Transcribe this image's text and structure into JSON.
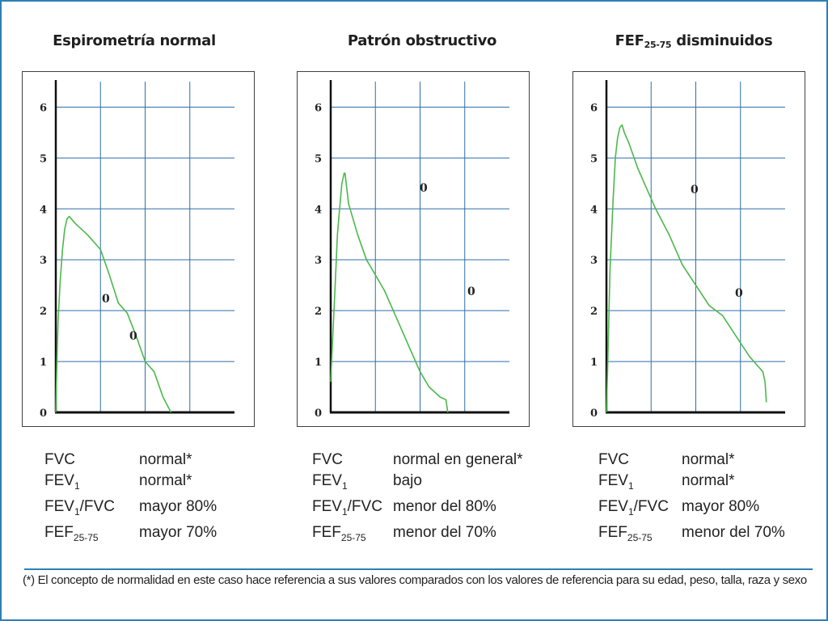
{
  "colors": {
    "frame": "#2f7fb5",
    "grid": "#2e6fa8",
    "curve": "#4cb84c",
    "axis": "#111111"
  },
  "panels": [
    {
      "title_main": "Espirometría normal",
      "title_sub": "",
      "title_after": "",
      "stats": [
        {
          "name_main": "FVC",
          "name_sub": "",
          "name_after": "",
          "value": "normal*"
        },
        {
          "name_main": "FEV",
          "name_sub": "1",
          "name_after": "",
          "value": "normal*"
        },
        {
          "name_main": "FEV",
          "name_sub": "1",
          "name_after": "/FVC",
          "value": "mayor 80%"
        },
        {
          "name_main": "FEF",
          "name_sub": "25-75",
          "name_after": "",
          "value": "mayor 70%"
        }
      ]
    },
    {
      "title_main": "Patrón obstructivo",
      "title_sub": "",
      "title_after": "",
      "stats": [
        {
          "name_main": "FVC",
          "name_sub": "",
          "name_after": "",
          "value": "normal en general*"
        },
        {
          "name_main": "FEV",
          "name_sub": "1",
          "name_after": "",
          "value": "bajo"
        },
        {
          "name_main": "FEV",
          "name_sub": "1",
          "name_after": "/FVC",
          "value": "menor del 80%"
        },
        {
          "name_main": "FEF",
          "name_sub": "25-75",
          "name_after": "",
          "value": "menor del 70%"
        }
      ]
    },
    {
      "title_main": "FEF",
      "title_sub": "25-75",
      "title_after": " disminuidos",
      "stats": [
        {
          "name_main": "FVC",
          "name_sub": "",
          "name_after": "",
          "value": "normal*"
        },
        {
          "name_main": "FEV",
          "name_sub": "1",
          "name_after": "",
          "value": "normal*"
        },
        {
          "name_main": "FEV",
          "name_sub": "1",
          "name_after": "/FVC",
          "value": "mayor 80%"
        },
        {
          "name_main": "FEF",
          "name_sub": "25-75",
          "name_after": "",
          "value": "menor del 70%"
        }
      ]
    }
  ],
  "footnote": "(*) El concepto de normalidad en este caso hace referencia a sus valores comparados con los valores de referencia para su edad, peso, talla, raza y sexo",
  "chart_data": [
    {
      "type": "line",
      "title": "Espirometría normal",
      "ylim": [
        0,
        6.5
      ],
      "xlim": [
        0,
        4
      ],
      "yticks": [
        "0",
        "1",
        "2",
        "3",
        "4",
        "5",
        "6"
      ],
      "grid": true,
      "series": [
        {
          "x": [
            0.0,
            0.02,
            0.05,
            0.1,
            0.15,
            0.2,
            0.25,
            0.3,
            0.45,
            0.7,
            1.0,
            1.2,
            1.4,
            1.6,
            1.8,
            2.0,
            2.2,
            2.4,
            2.58
          ],
          "y": [
            0.0,
            0.8,
            1.8,
            2.6,
            3.2,
            3.6,
            3.8,
            3.85,
            3.7,
            3.5,
            3.2,
            2.7,
            2.15,
            1.95,
            1.5,
            1.0,
            0.8,
            0.3,
            0.0
          ]
        }
      ],
      "annotations": [
        "0",
        "0"
      ]
    },
    {
      "type": "line",
      "title": "Patrón obstructivo",
      "ylim": [
        0,
        6.5
      ],
      "xlim": [
        0,
        4
      ],
      "yticks": [
        "0",
        "1",
        "2",
        "3",
        "4",
        "5",
        "6"
      ],
      "grid": true,
      "series": [
        {
          "x": [
            0.0,
            0.03,
            0.1,
            0.15,
            0.2,
            0.25,
            0.3,
            0.32,
            0.4,
            0.6,
            0.8,
            1.0,
            1.2,
            1.5,
            1.8,
            2.0,
            2.2,
            2.45,
            2.58,
            2.62
          ],
          "y": [
            0.6,
            1.2,
            2.5,
            3.5,
            4.0,
            4.5,
            4.7,
            4.7,
            4.1,
            3.5,
            3.0,
            2.7,
            2.4,
            1.8,
            1.2,
            0.8,
            0.5,
            0.3,
            0.25,
            0.0
          ]
        }
      ],
      "annotations": [
        "0",
        "0"
      ]
    },
    {
      "type": "line",
      "title": "FEF25-75 disminuidos",
      "ylim": [
        0,
        6.5
      ],
      "xlim": [
        0,
        4
      ],
      "yticks": [
        "0",
        "1",
        "2",
        "3",
        "4",
        "5",
        "6"
      ],
      "grid": true,
      "series": [
        {
          "x": [
            0.0,
            0.03,
            0.08,
            0.15,
            0.2,
            0.25,
            0.3,
            0.35,
            0.4,
            0.5,
            0.7,
            0.9,
            1.1,
            1.4,
            1.7,
            2.0,
            2.3,
            2.6,
            2.9,
            3.2,
            3.4,
            3.5,
            3.55,
            3.58
          ],
          "y": [
            0.0,
            1.0,
            2.8,
            4.2,
            5.0,
            5.4,
            5.6,
            5.65,
            5.5,
            5.3,
            4.8,
            4.4,
            4.0,
            3.5,
            2.9,
            2.5,
            2.1,
            1.9,
            1.5,
            1.1,
            0.9,
            0.8,
            0.6,
            0.2
          ]
        }
      ],
      "annotations": [
        "0",
        "0"
      ]
    }
  ]
}
